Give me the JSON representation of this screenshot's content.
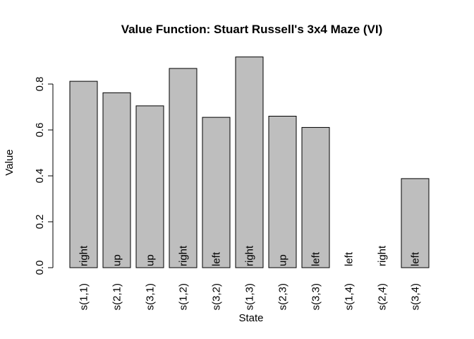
{
  "chart_data": {
    "type": "bar",
    "title": "Value Function: Stuart Russell's 3x4 Maze (VI)",
    "xlabel": "State",
    "ylabel": "Value",
    "ylim": [
      0,
      0.92
    ],
    "yticks": [
      "0.0",
      "0.2",
      "0.4",
      "0.6",
      "0.8"
    ],
    "ytick_values": [
      0,
      0.2,
      0.4,
      0.6,
      0.8
    ],
    "categories": [
      "s(1,1)",
      "s(2,1)",
      "s(3,1)",
      "s(1,2)",
      "s(3,2)",
      "s(1,3)",
      "s(2,3)",
      "s(3,3)",
      "s(1,4)",
      "s(2,4)",
      "s(3,4)"
    ],
    "values": [
      0.812,
      0.762,
      0.705,
      0.868,
      0.655,
      0.918,
      0.66,
      0.611,
      0.0,
      0.0,
      0.388
    ],
    "bar_labels": [
      "right",
      "up",
      "up",
      "right",
      "left",
      "right",
      "up",
      "left",
      "left",
      "right",
      "left"
    ],
    "grid": false,
    "legend": "none",
    "colors": {
      "bar_fill": "#bebebe",
      "bar_stroke": "#000000"
    }
  }
}
